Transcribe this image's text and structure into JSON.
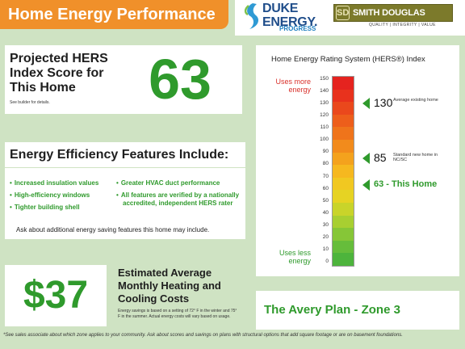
{
  "header": {
    "title": "Home Energy Performance",
    "duke_logo": {
      "name": "DUKE ENERGY.",
      "sub": "PROGRESS"
    },
    "builder_logo": {
      "mark": "SD",
      "name": "SMITH DOUGLAS HOMES",
      "tagline": "QUALITY | INTEGRITY | VALUE"
    }
  },
  "hers": {
    "label": "Projected HERS Index Score for This Home",
    "note": "See builder for details.",
    "score": "63"
  },
  "features": {
    "title": "Energy Efficiency Features Include:",
    "left": [
      "Increased insulation values",
      "High-efficiency windows",
      "Tighter building shell"
    ],
    "right": [
      "Greater HVAC duct performance",
      "All features are verified by a nationally accredited, independent HERS rater"
    ],
    "note": "Ask about additional energy saving features this home may include."
  },
  "savings": {
    "value": "$37",
    "title": "Estimated Average Monthly Heating and Cooling Costs",
    "note": "Energy savings is based on a setting of 72° F in the winter and 75° F in the summer. Actual energy costs will vary based on usage."
  },
  "chart": {
    "title": "Home Energy Rating System (HERS®) Index",
    "uses_more": "Uses more energy",
    "uses_less": "Uses less energy",
    "ticks": [
      "150",
      "140",
      "130",
      "120",
      "110",
      "100",
      "90",
      "80",
      "70",
      "60",
      "50",
      "40",
      "30",
      "20",
      "10",
      "0"
    ],
    "markers": [
      {
        "value": 130,
        "label": "130",
        "sub": "Average existing home"
      },
      {
        "value": 85,
        "label": "85",
        "sub": "Standard new home in NC/SC"
      },
      {
        "value": 63,
        "label": "63 - This Home",
        "sub": ""
      }
    ],
    "colors": [
      "#e5231f",
      "#e8321d",
      "#ea481c",
      "#ed5e1b",
      "#ef741b",
      "#f28b1c",
      "#f4a21d",
      "#f6b81f",
      "#f1c821",
      "#e6d323",
      "#c9d42a",
      "#a8cf31",
      "#86c637",
      "#66bd3b",
      "#4db43c"
    ]
  },
  "plan": {
    "name": "The Avery Plan - Zone 3"
  },
  "footnote": "*See sales associate about which zone applies to your community.  Ask about scores and savings on plans with structural options that add square footage or are on basement foundations."
}
